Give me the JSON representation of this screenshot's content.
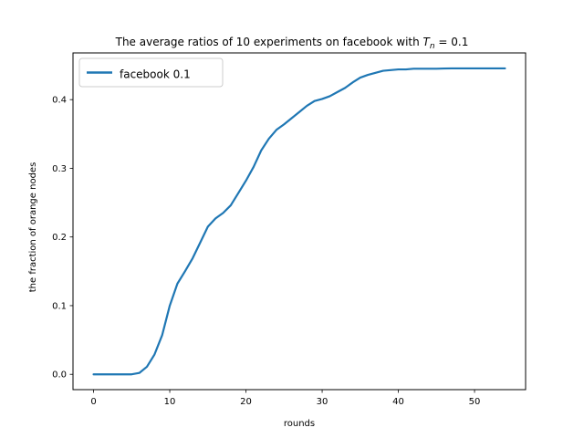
{
  "chart_data": {
    "type": "line",
    "title": "The average ratios of 10 experiments on facebook with ",
    "title_math": {
      "symbol": "T",
      "subscript": "n",
      "rest": " = 0.1"
    },
    "xlabel": "rounds",
    "ylabel": "the fraction of orange nodes",
    "xlim": [
      -2.7,
      56.7
    ],
    "ylim": [
      -0.0223,
      0.468
    ],
    "xticks": [
      0,
      10,
      20,
      30,
      40,
      50
    ],
    "yticks": [
      0.0,
      0.1,
      0.2,
      0.3,
      0.4
    ],
    "ytick_labels": [
      "0.0",
      "0.1",
      "0.2",
      "0.3",
      "0.4"
    ],
    "legend": {
      "position": "upper-left"
    },
    "series": [
      {
        "name": "facebook 0.1",
        "color": "#1f77b4",
        "x": [
          0,
          1,
          2,
          3,
          4,
          5,
          6,
          7,
          8,
          9,
          10,
          11,
          12,
          13,
          14,
          15,
          16,
          17,
          18,
          19,
          20,
          21,
          22,
          23,
          24,
          25,
          26,
          27,
          28,
          29,
          30,
          31,
          32,
          33,
          34,
          35,
          36,
          37,
          38,
          39,
          40,
          41,
          42,
          43,
          44,
          45,
          46,
          47,
          48,
          49,
          50,
          51,
          52,
          53,
          54
        ],
        "y": [
          0.0,
          0.0,
          0.0,
          0.0,
          0.0,
          0.0,
          0.002,
          0.011,
          0.029,
          0.057,
          0.1,
          0.132,
          0.15,
          0.169,
          0.192,
          0.215,
          0.227,
          0.235,
          0.246,
          0.264,
          0.282,
          0.302,
          0.326,
          0.343,
          0.356,
          0.364,
          0.373,
          0.382,
          0.391,
          0.398,
          0.401,
          0.405,
          0.411,
          0.417,
          0.425,
          0.432,
          0.436,
          0.439,
          0.442,
          0.443,
          0.444,
          0.444,
          0.445,
          0.445,
          0.445,
          0.445,
          0.4453,
          0.4455,
          0.4455,
          0.4455,
          0.4455,
          0.4455,
          0.4455,
          0.4455,
          0.4455
        ]
      }
    ]
  }
}
